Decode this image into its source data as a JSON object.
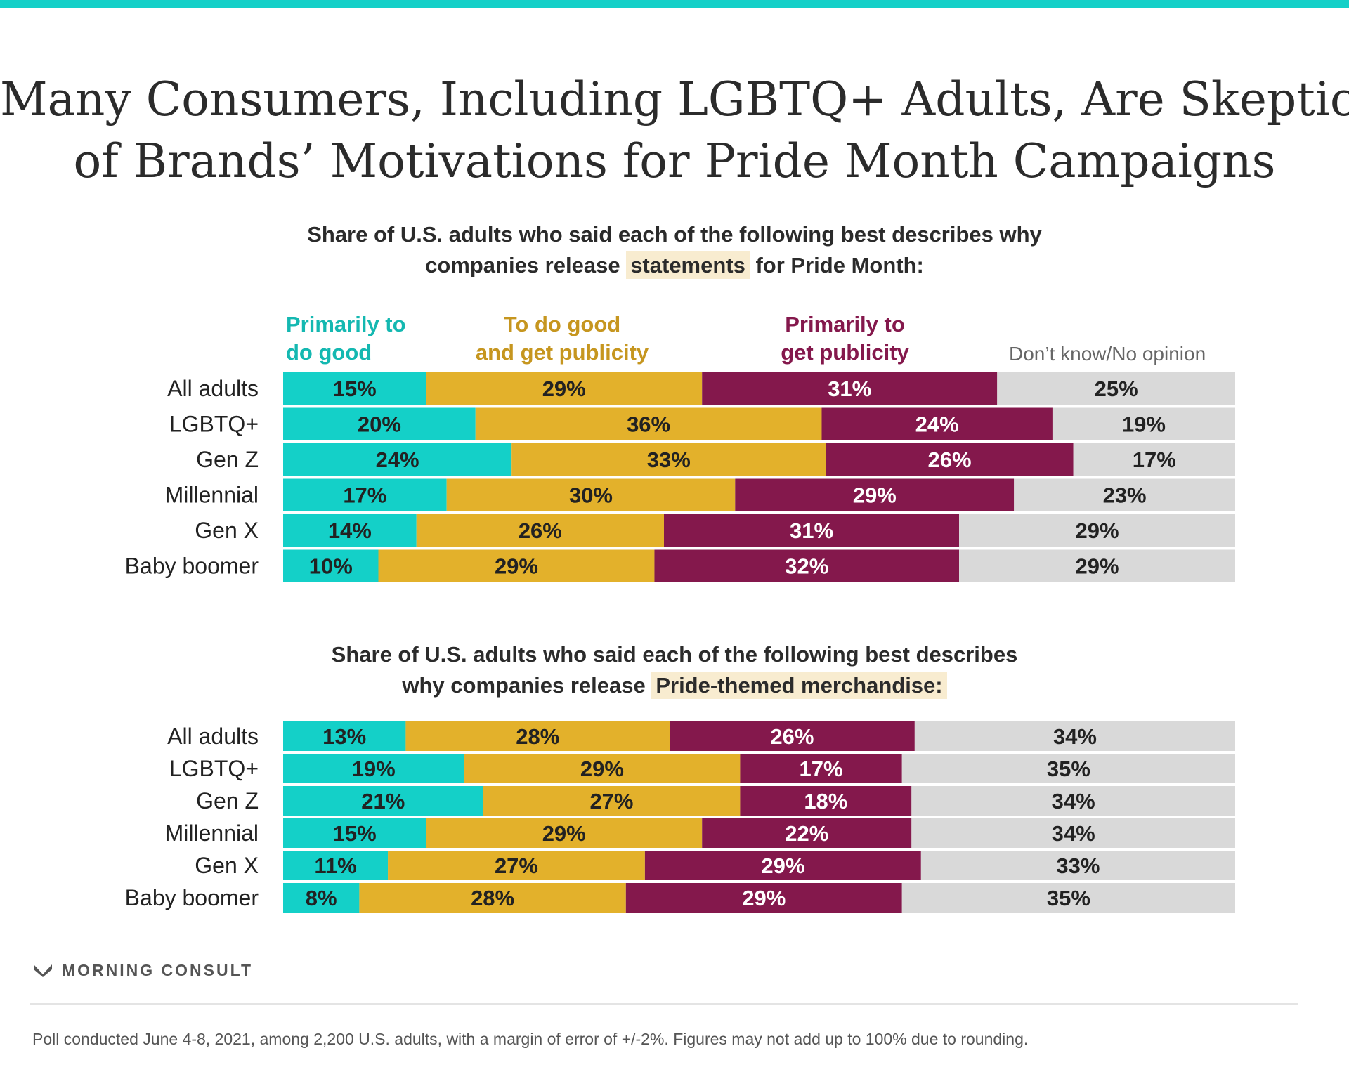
{
  "title_lines": [
    "Many Consumers, Including LGBTQ+ Adults, Are Skeptical",
    "of Brands’ Motivations for Pride Month Campaigns"
  ],
  "legend": {
    "good": [
      "Primarily to",
      "do good"
    ],
    "both": [
      "To do good",
      "and get publicity"
    ],
    "publicity": [
      "Primarily to",
      "get publicity"
    ],
    "dont_know": "Don’t know/No opinion"
  },
  "colors": {
    "good": "#14d0c8",
    "both": "#e3b12b",
    "publicity": "#84184c",
    "dont_know": "#d9d9d9"
  },
  "subtitles": {
    "statements": {
      "line1": "Share of U.S. adults who said each of the following best describes why",
      "pre": "companies release ",
      "hl": "statements",
      "post": " for Pride Month:"
    },
    "merch": {
      "line1": "Share of U.S. adults who said each of the following best describes",
      "pre": "why companies release ",
      "hl": "Pride-themed merchandise:",
      "post": ""
    }
  },
  "chart_data": [
    {
      "type": "bar",
      "stacked": true,
      "orientation": "horizontal",
      "title": "Share of U.S. adults who said each of the following best describes why companies release statements for Pride Month:",
      "categories": [
        "All adults",
        "LGBTQ+",
        "Gen Z",
        "Millennial",
        "Gen X",
        "Baby boomer"
      ],
      "series": [
        {
          "name": "Primarily to do good",
          "values": [
            15,
            20,
            24,
            17,
            14,
            10
          ]
        },
        {
          "name": "To do good and get publicity",
          "values": [
            29,
            36,
            33,
            30,
            26,
            29
          ]
        },
        {
          "name": "Primarily to get publicity",
          "values": [
            31,
            24,
            26,
            29,
            31,
            32
          ]
        },
        {
          "name": "Don’t know/No opinion",
          "values": [
            25,
            19,
            17,
            23,
            29,
            29
          ]
        }
      ],
      "unit": "%",
      "legend": "top"
    },
    {
      "type": "bar",
      "stacked": true,
      "orientation": "horizontal",
      "title": "Share of U.S. adults who said each of the following best describes why companies release Pride-themed merchandise:",
      "categories": [
        "All adults",
        "LGBTQ+",
        "Gen Z",
        "Millennial",
        "Gen X",
        "Baby boomer"
      ],
      "series": [
        {
          "name": "Primarily to do good",
          "values": [
            13,
            19,
            21,
            15,
            11,
            8
          ]
        },
        {
          "name": "To do good and get publicity",
          "values": [
            28,
            29,
            27,
            29,
            27,
            28
          ]
        },
        {
          "name": "Primarily to get publicity",
          "values": [
            26,
            17,
            18,
            22,
            29,
            29
          ]
        },
        {
          "name": "Don’t know/No opinion",
          "values": [
            34,
            35,
            34,
            34,
            33,
            35
          ]
        }
      ],
      "unit": "%"
    }
  ],
  "footer": {
    "logo_text": "MORNING CONSULT",
    "logo_icon": "morning-consult-m-icon",
    "note": "Poll conducted June 4-8, 2021, among 2,200 U.S. adults, with a margin of error of +/-2%. Figures may not add up to 100% due to rounding."
  }
}
